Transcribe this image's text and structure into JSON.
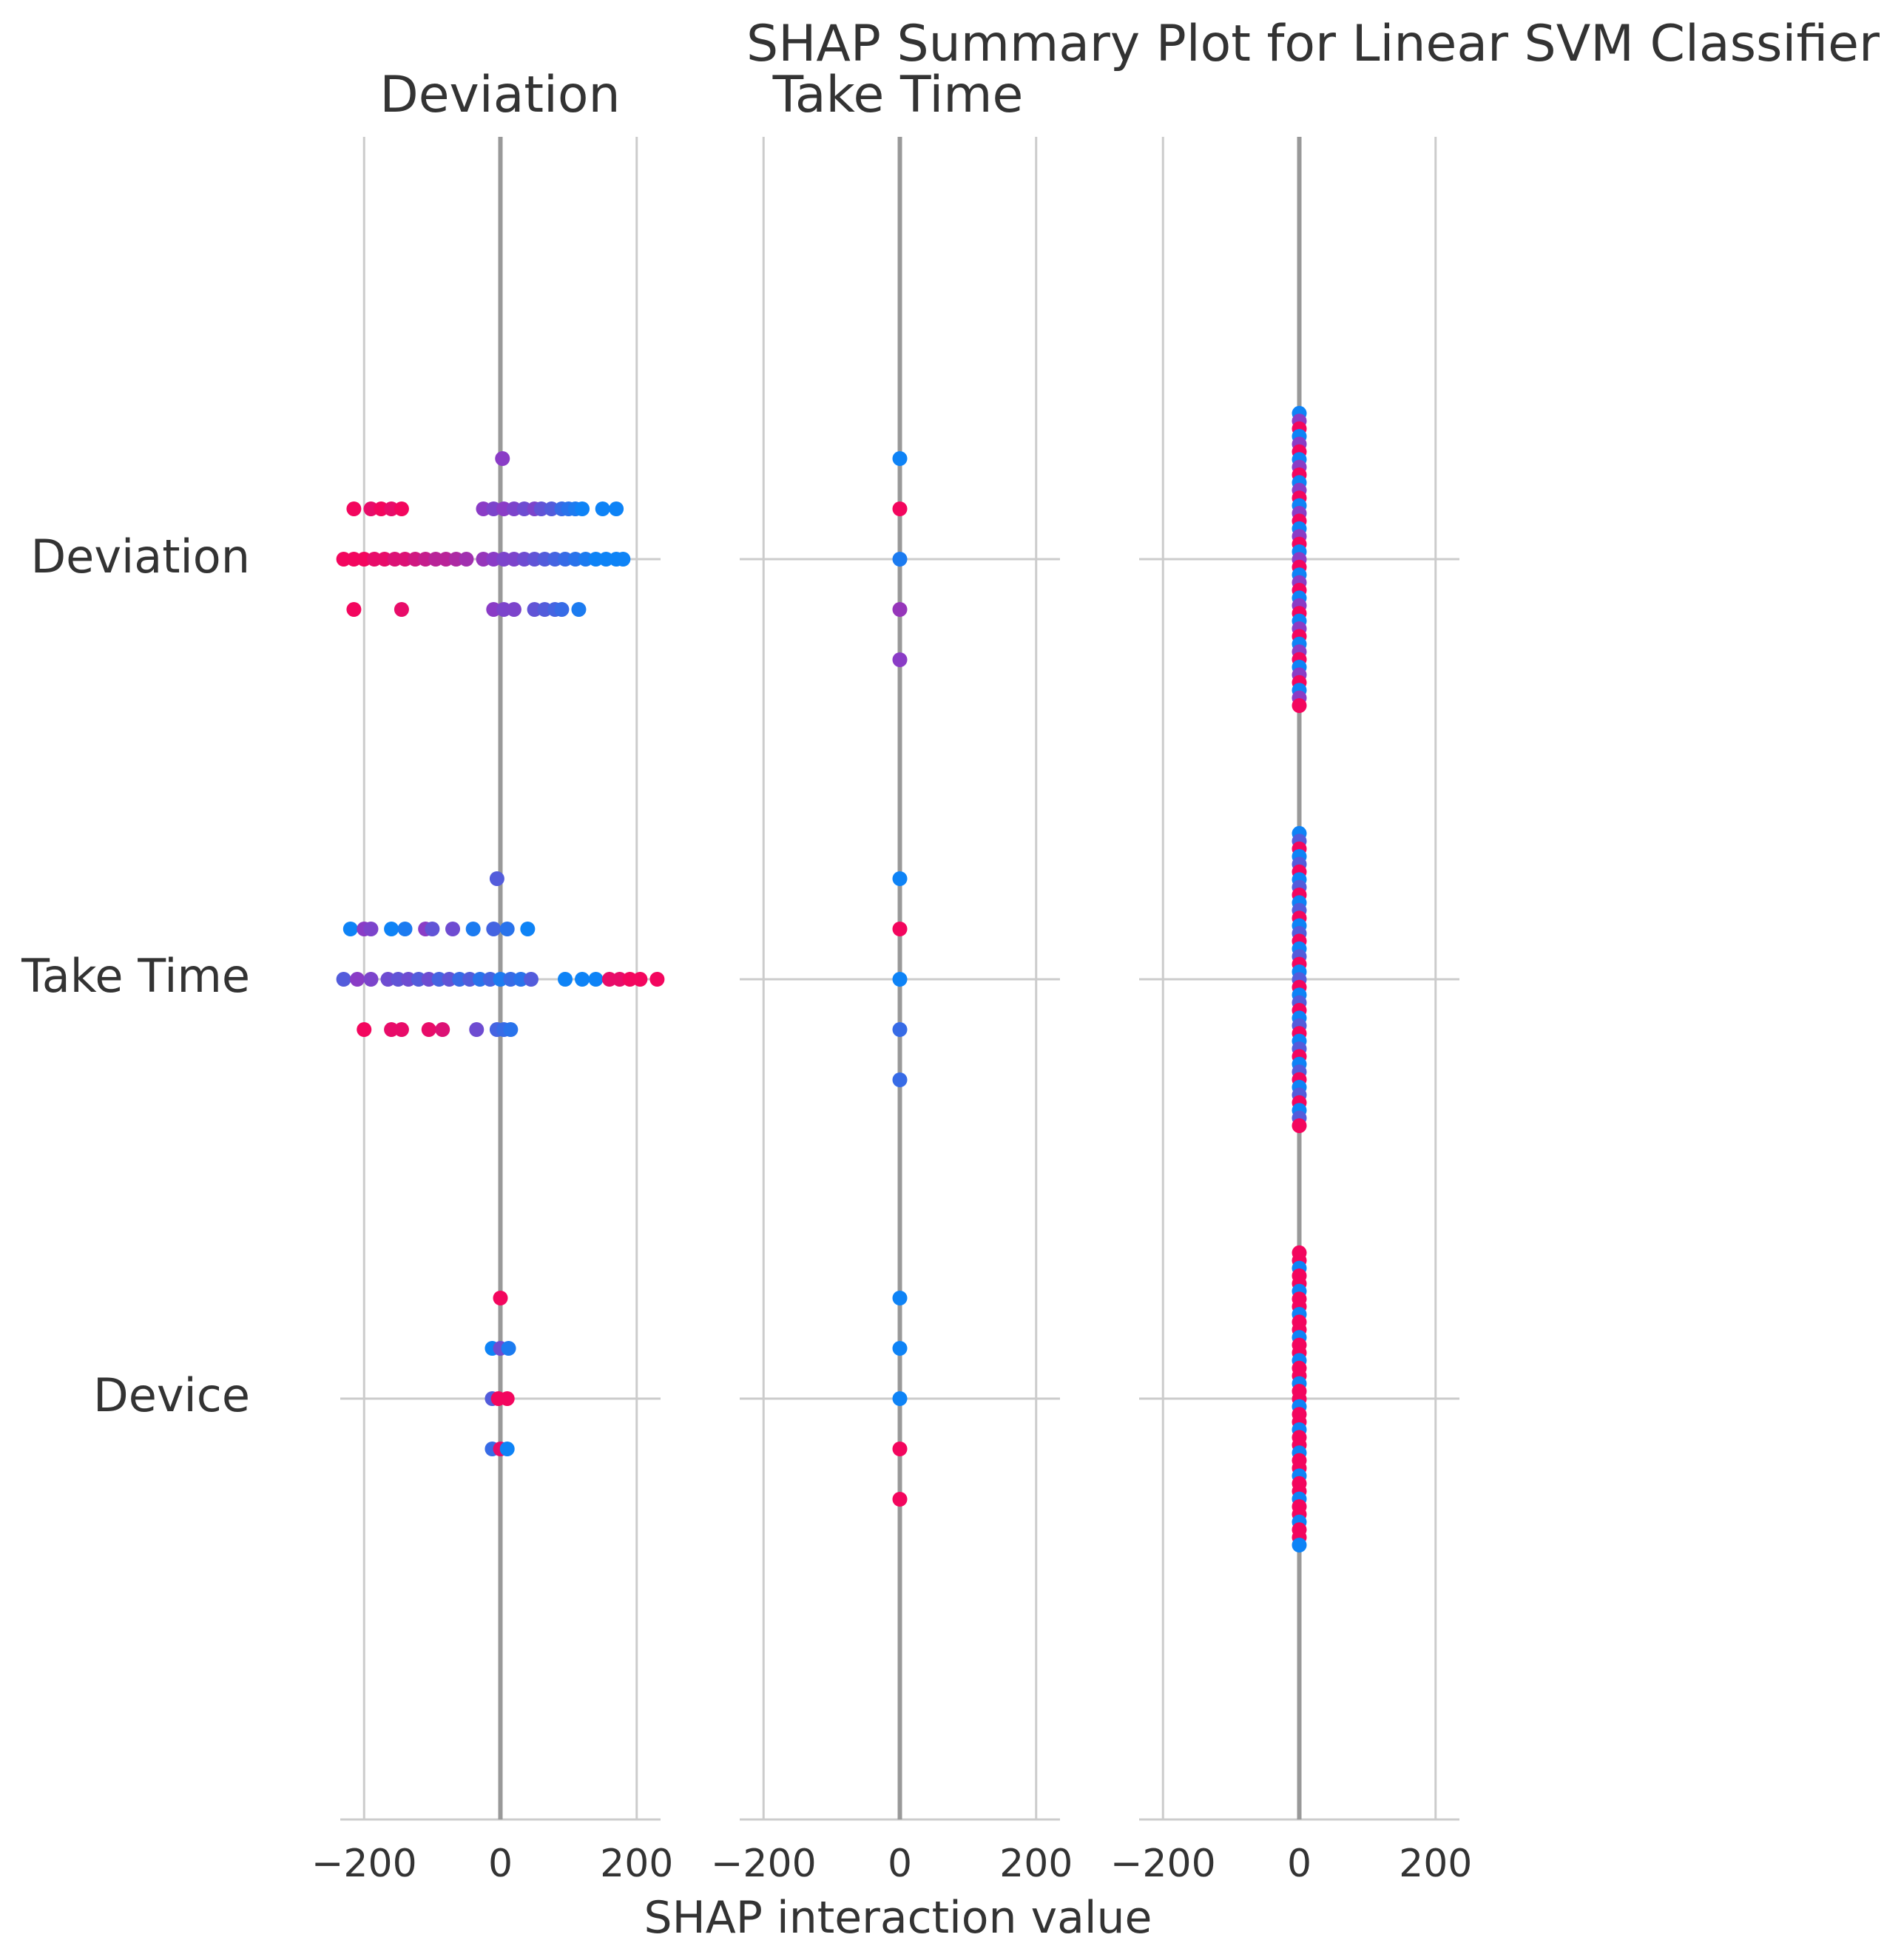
{
  "chart_data": {
    "type": "scatter",
    "title": "SHAP Summary Plot for Linear SVM Classifier",
    "xlabel": "SHAP interaction value",
    "features": [
      "Deviation",
      "Take Time",
      "Device"
    ],
    "panel_titles": [
      "Deviation",
      "Take Time",
      ""
    ],
    "xlim": [
      -235,
      235
    ],
    "xticks": [
      -200,
      0,
      200
    ],
    "xtick_labels": [
      "−200",
      "0",
      "200"
    ],
    "colors": {
      "high": "#ff0052",
      "mid": "#8a3cc6",
      "low": "#008bfb"
    },
    "panels": [
      {
        "name": "Deviation",
        "rows": [
          {
            "feature": "Deviation",
            "points": [
              [
                3,
                -2,
                0.5
              ],
              [
                -215,
                -1,
                0.05
              ],
              [
                -190,
                -1,
                0.1
              ],
              [
                -175,
                -1,
                0.05
              ],
              [
                -160,
                -1,
                0.1
              ],
              [
                -145,
                -1,
                0.05
              ],
              [
                -25,
                -1,
                0.5
              ],
              [
                -10,
                -1,
                0.55
              ],
              [
                5,
                -1,
                0.5
              ],
              [
                20,
                -1,
                0.55
              ],
              [
                35,
                -1,
                0.6
              ],
              [
                50,
                -1,
                0.55
              ],
              [
                60,
                -1,
                0.65
              ],
              [
                75,
                -1,
                0.7
              ],
              [
                90,
                -1,
                0.8
              ],
              [
                100,
                -1,
                0.85
              ],
              [
                110,
                -1,
                0.9
              ],
              [
                120,
                -1,
                0.95
              ],
              [
                150,
                -1,
                0.95
              ],
              [
                170,
                -1,
                0.95
              ],
              [
                -230,
                0,
                0.05
              ],
              [
                -215,
                0,
                0.05
              ],
              [
                -200,
                0,
                0.05
              ],
              [
                -185,
                0,
                0.1
              ],
              [
                -170,
                0,
                0.1
              ],
              [
                -155,
                0,
                0.15
              ],
              [
                -140,
                0,
                0.15
              ],
              [
                -125,
                0,
                0.2
              ],
              [
                -110,
                0,
                0.25
              ],
              [
                -95,
                0,
                0.3
              ],
              [
                -80,
                0,
                0.3
              ],
              [
                -65,
                0,
                0.35
              ],
              [
                -50,
                0,
                0.4
              ],
              [
                -25,
                0,
                0.45
              ],
              [
                -10,
                0,
                0.5
              ],
              [
                5,
                0,
                0.55
              ],
              [
                20,
                0,
                0.55
              ],
              [
                35,
                0,
                0.6
              ],
              [
                50,
                0,
                0.65
              ],
              [
                65,
                0,
                0.7
              ],
              [
                80,
                0,
                0.75
              ],
              [
                95,
                0,
                0.8
              ],
              [
                110,
                0,
                0.85
              ],
              [
                125,
                0,
                0.9
              ],
              [
                140,
                0,
                0.95
              ],
              [
                155,
                0,
                0.95
              ],
              [
                170,
                0,
                0.95
              ],
              [
                180,
                0,
                0.95
              ],
              [
                -215,
                1,
                0.05
              ],
              [
                -145,
                1,
                0.1
              ],
              [
                -10,
                1,
                0.5
              ],
              [
                5,
                1,
                0.55
              ],
              [
                20,
                1,
                0.55
              ],
              [
                50,
                1,
                0.65
              ],
              [
                65,
                1,
                0.7
              ],
              [
                80,
                1,
                0.75
              ],
              [
                90,
                1,
                0.8
              ],
              [
                115,
                1,
                0.9
              ]
            ]
          },
          {
            "feature": "Take Time",
            "points": [
              [
                -5,
                -2,
                0.7
              ],
              [
                -220,
                -1,
                0.95
              ],
              [
                -200,
                -1,
                0.5
              ],
              [
                -190,
                -1,
                0.55
              ],
              [
                -160,
                -1,
                0.95
              ],
              [
                -140,
                -1,
                0.9
              ],
              [
                -110,
                -1,
                0.5
              ],
              [
                -100,
                -1,
                0.65
              ],
              [
                -70,
                -1,
                0.6
              ],
              [
                -40,
                -1,
                0.9
              ],
              [
                -10,
                -1,
                0.75
              ],
              [
                10,
                -1,
                0.85
              ],
              [
                40,
                -1,
                0.95
              ],
              [
                -230,
                0,
                0.7
              ],
              [
                -210,
                0,
                0.5
              ],
              [
                -190,
                0,
                0.55
              ],
              [
                -165,
                0,
                0.6
              ],
              [
                -150,
                0,
                0.65
              ],
              [
                -135,
                0,
                0.6
              ],
              [
                -120,
                0,
                0.7
              ],
              [
                -105,
                0,
                0.6
              ],
              [
                -90,
                0,
                0.75
              ],
              [
                -75,
                0,
                0.65
              ],
              [
                -60,
                0,
                0.8
              ],
              [
                -45,
                0,
                0.7
              ],
              [
                -30,
                0,
                0.85
              ],
              [
                -15,
                0,
                0.75
              ],
              [
                0,
                0,
                0.9
              ],
              [
                15,
                0,
                0.8
              ],
              [
                30,
                0,
                0.85
              ],
              [
                45,
                0,
                0.7
              ],
              [
                95,
                0,
                0.95
              ],
              [
                120,
                0,
                0.95
              ],
              [
                140,
                0,
                0.95
              ],
              [
                160,
                0,
                0.1
              ],
              [
                175,
                0,
                0.1
              ],
              [
                190,
                0,
                0.05
              ],
              [
                205,
                0,
                0.05
              ],
              [
                230,
                0,
                0.05
              ],
              [
                -200,
                1,
                0.05
              ],
              [
                -160,
                1,
                0.1
              ],
              [
                -145,
                1,
                0.1
              ],
              [
                -105,
                1,
                0.1
              ],
              [
                -85,
                1,
                0.15
              ],
              [
                -35,
                1,
                0.6
              ],
              [
                -5,
                1,
                0.75
              ],
              [
                5,
                1,
                0.8
              ],
              [
                15,
                1,
                0.85
              ]
            ]
          },
          {
            "feature": "Device",
            "points": [
              [
                0,
                -2,
                0.05
              ],
              [
                -12,
                -1,
                0.95
              ],
              [
                0,
                -1,
                0.6
              ],
              [
                12,
                -1,
                0.9
              ],
              [
                -12,
                0,
                0.7
              ],
              [
                -3,
                0,
                0.05
              ],
              [
                10,
                0,
                0.05
              ],
              [
                -12,
                1,
                0.8
              ],
              [
                0,
                1,
                0.1
              ],
              [
                10,
                1,
                0.95
              ]
            ]
          }
        ]
      },
      {
        "name": "Take Time",
        "rows": [
          {
            "feature": "Deviation",
            "points": [
              [
                0,
                -2,
                0.95
              ],
              [
                0,
                -1,
                0.05
              ],
              [
                0,
                0,
                0.9
              ],
              [
                0,
                1,
                0.45
              ],
              [
                0,
                2,
                0.5
              ]
            ]
          },
          {
            "feature": "Take Time",
            "points": [
              [
                0,
                -2,
                0.95
              ],
              [
                0,
                -1,
                0.05
              ],
              [
                0,
                0,
                0.95
              ],
              [
                0,
                1,
                0.8
              ],
              [
                0,
                2,
                0.8
              ]
            ]
          },
          {
            "feature": "Device",
            "points": [
              [
                0,
                -2,
                0.95
              ],
              [
                0,
                -1,
                0.95
              ],
              [
                0,
                0,
                0.95
              ],
              [
                0,
                1,
                0.05
              ],
              [
                0,
                2,
                0.05
              ]
            ]
          }
        ]
      },
      {
        "name": "Device",
        "column_spread": [
          2.9,
          2.9
        ],
        "rows": [
          {
            "feature": "Deviation",
            "color_mix": [
              0.95,
              0.5,
              0.05
            ]
          },
          {
            "feature": "Take Time",
            "color_mix": [
              0.95,
              0.7,
              0.05
            ]
          },
          {
            "feature": "Device",
            "color_mix": [
              0.05,
              0.05,
              0.95
            ]
          }
        ]
      }
    ]
  }
}
